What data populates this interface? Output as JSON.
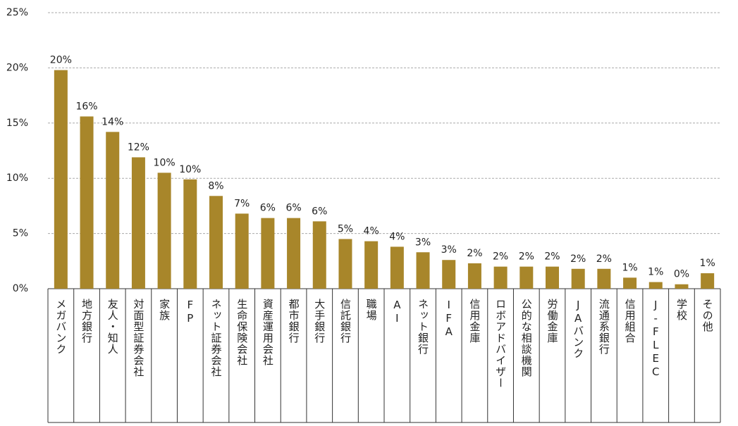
{
  "chart_data": {
    "type": "bar",
    "categories": [
      "メガバンク",
      "地方銀行",
      "友人・知人",
      "対面型証券会社",
      "家族",
      "FP",
      "ネット証券会社",
      "生命保険会社",
      "資産運用会社",
      "都市銀行",
      "大手銀行",
      "信託銀行",
      "職場",
      "AI",
      "ネット銀行",
      "IFA",
      "信用金庫",
      "ロボアドバイザー",
      "公的な相談機関",
      "労働金庫",
      "JAバンク",
      "流通系銀行",
      "信用組合",
      "J-FLEC",
      "学校",
      "その他"
    ],
    "values": [
      19.8,
      15.6,
      14.2,
      11.9,
      10.5,
      9.9,
      8.4,
      6.8,
      6.4,
      6.4,
      6.1,
      4.5,
      4.3,
      3.8,
      3.3,
      2.6,
      2.3,
      2.0,
      2.0,
      2.0,
      1.8,
      1.8,
      1.0,
      0.6,
      0.4,
      1.4
    ],
    "value_labels": [
      "20%",
      "16%",
      "14%",
      "12%",
      "10%",
      "10%",
      "8%",
      "7%",
      "6%",
      "6%",
      "6%",
      "5%",
      "4%",
      "4%",
      "3%",
      "3%",
      "2%",
      "2%",
      "2%",
      "2%",
      "2%",
      "2%",
      "1%",
      "1%",
      "0%",
      "1%"
    ],
    "color": "#a8862a",
    "ylim": [
      0,
      25
    ],
    "yticks": [
      {
        "value": 0,
        "label": "0%"
      },
      {
        "value": 5,
        "label": "5%"
      },
      {
        "value": 10,
        "label": "10%"
      },
      {
        "value": 15,
        "label": "15%"
      },
      {
        "value": 20,
        "label": "20%"
      },
      {
        "value": 25,
        "label": "25%"
      }
    ],
    "grid": true
  }
}
